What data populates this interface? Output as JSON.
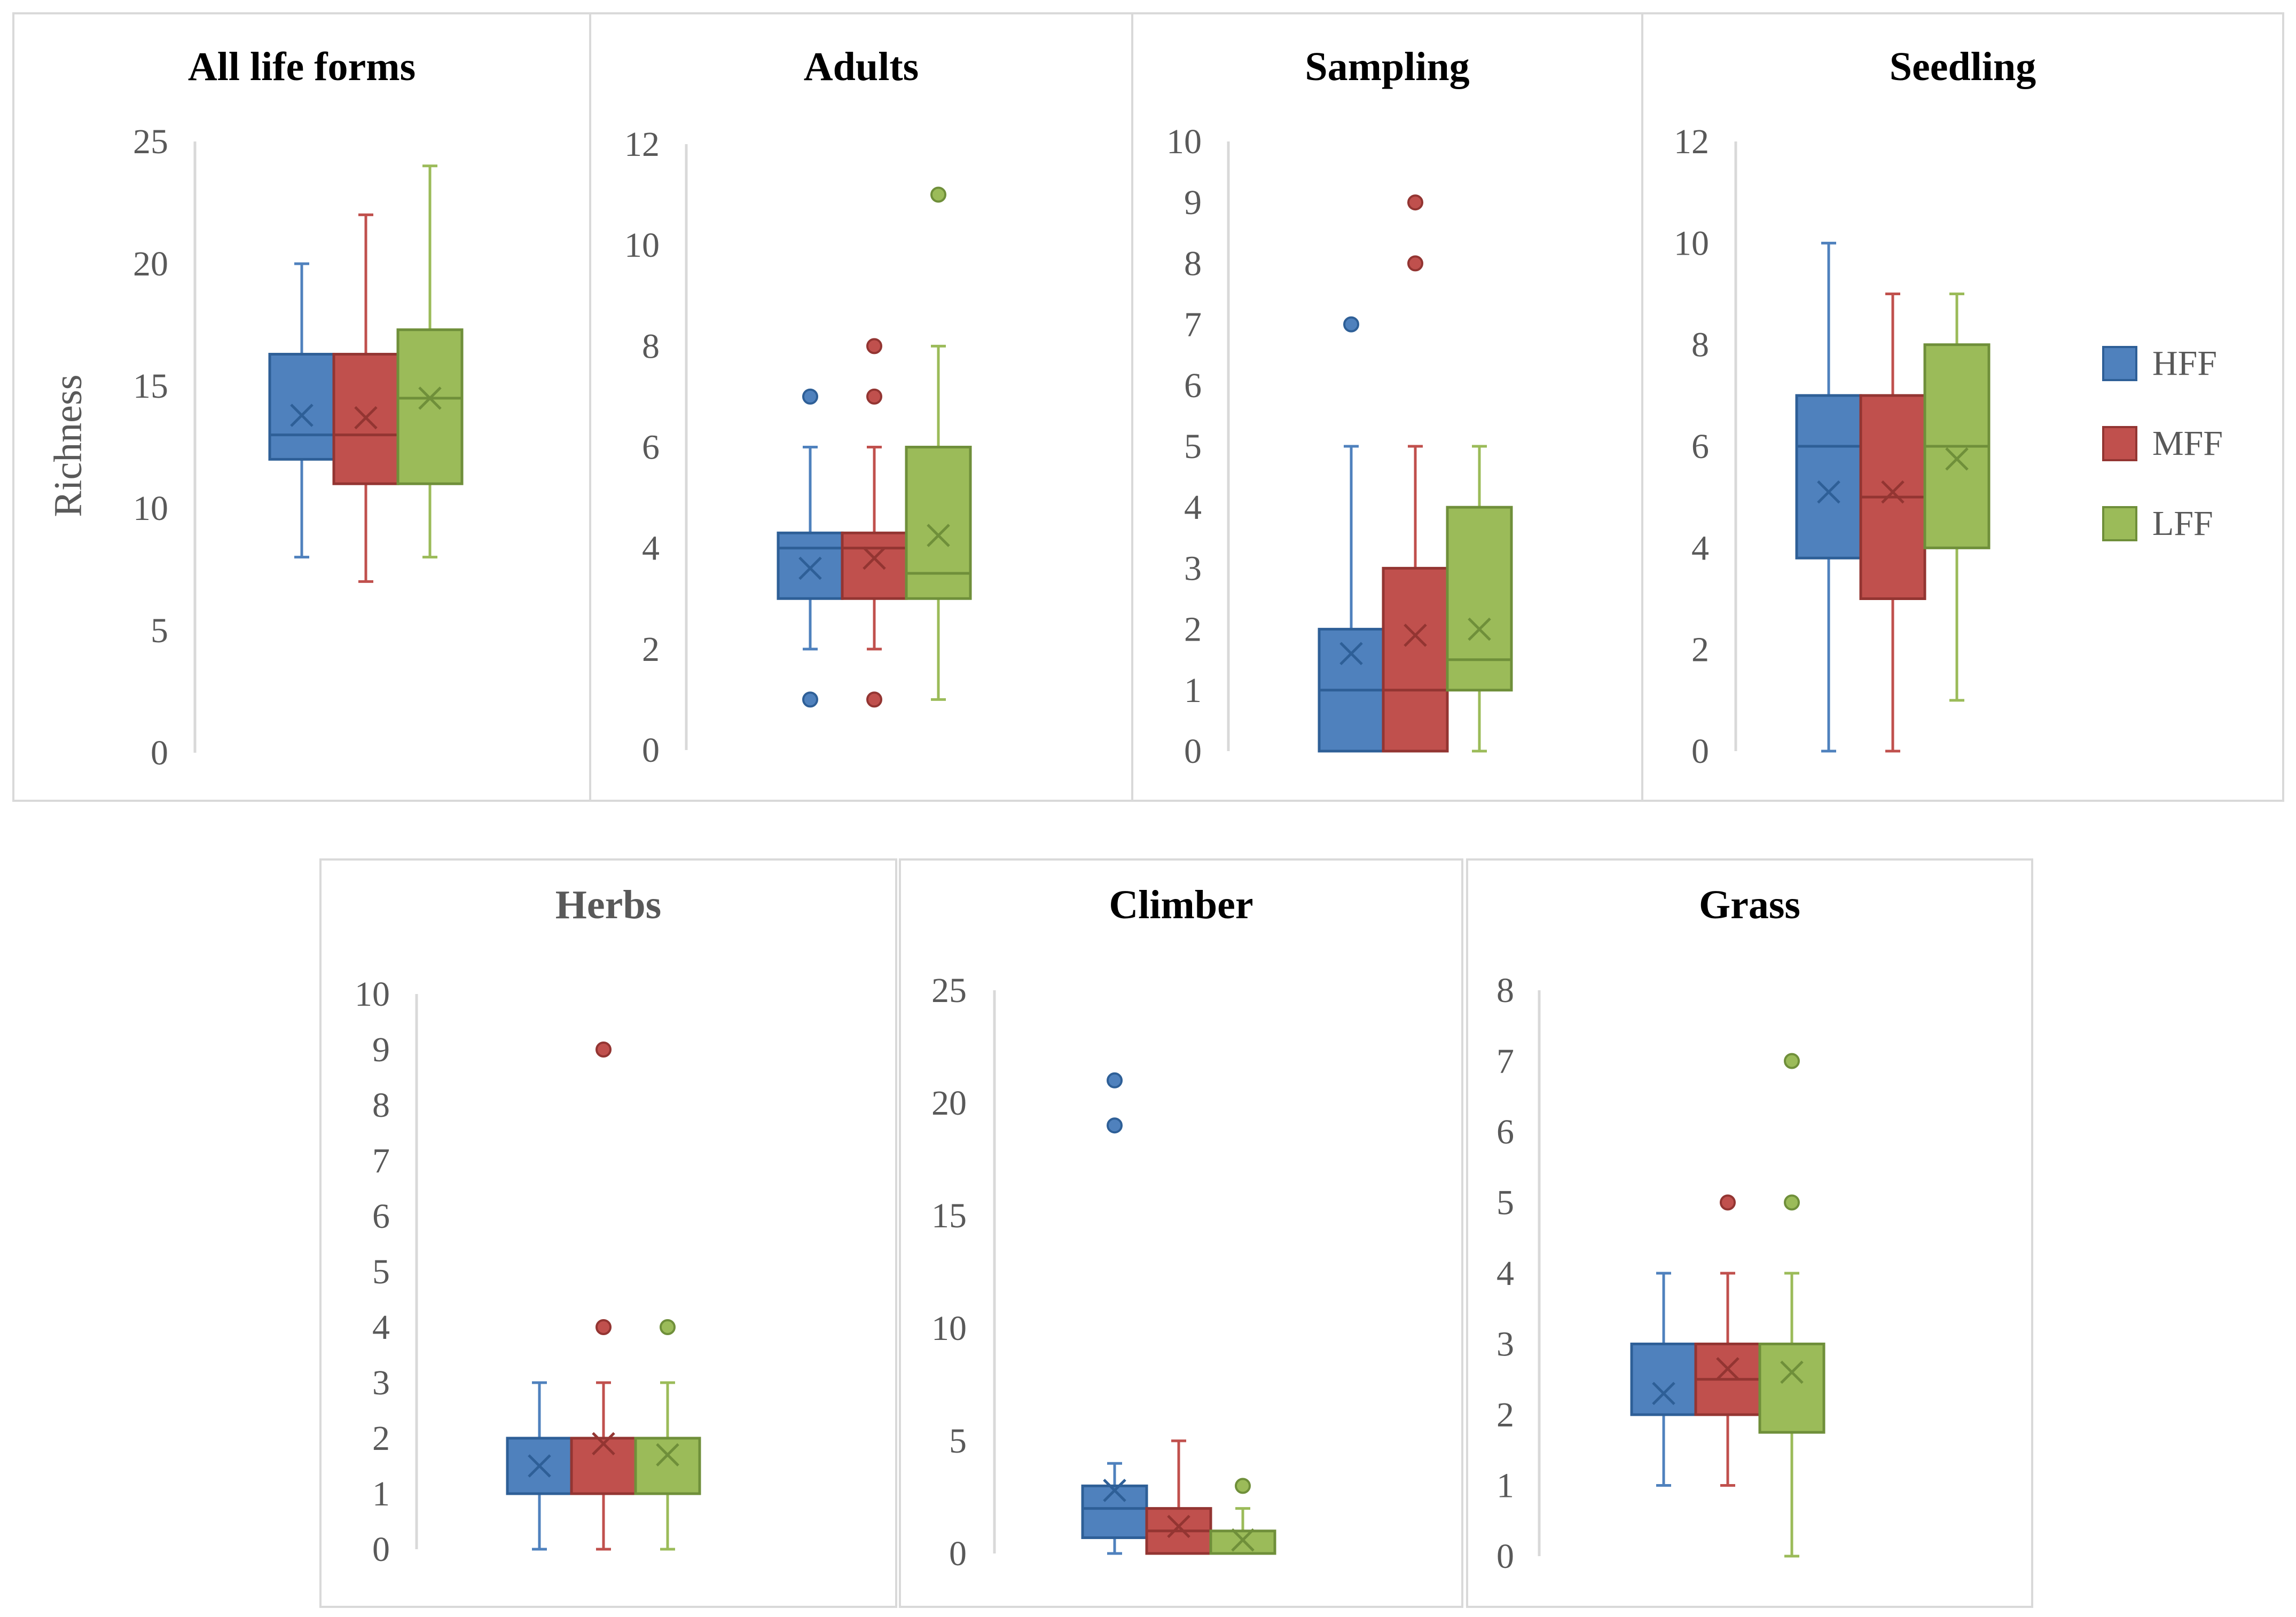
{
  "colors": {
    "HFF": {
      "fill": "#4f81bd",
      "stroke": "#2e5f97"
    },
    "MFF": {
      "fill": "#c0504d",
      "stroke": "#933532"
    },
    "LFF": {
      "fill": "#9bbb59",
      "stroke": "#6f8f3a"
    },
    "axis": "#d9d9d9",
    "tick_text": "#595959",
    "panel_border": "#d9d9d9"
  },
  "y_axis_label": "Richness",
  "legend": [
    "HFF",
    "MFF",
    "LFF"
  ],
  "chart_data": [
    {
      "type": "boxplot",
      "title": "All life forms",
      "title_color": "#000000",
      "ylabel": "Richness",
      "ylim": [
        0,
        25
      ],
      "yticks": [
        0,
        5,
        10,
        15,
        20,
        25
      ],
      "series": [
        {
          "name": "HFF",
          "min": 8,
          "q1": 12,
          "median": 13,
          "q3": 16.3,
          "max": 20,
          "mean": 13.8,
          "outliers": []
        },
        {
          "name": "MFF",
          "min": 7,
          "q1": 11,
          "median": 13,
          "q3": 16.3,
          "max": 22,
          "mean": 13.7,
          "outliers": []
        },
        {
          "name": "LFF",
          "min": 8,
          "q1": 11,
          "median": 14.5,
          "q3": 17.3,
          "max": 24,
          "mean": 14.5,
          "outliers": []
        }
      ]
    },
    {
      "type": "boxplot",
      "title": "Adults",
      "title_color": "#000000",
      "ylim": [
        0,
        12
      ],
      "yticks": [
        0,
        2,
        4,
        6,
        8,
        10,
        12
      ],
      "series": [
        {
          "name": "HFF",
          "min": 2,
          "q1": 3,
          "median": 4,
          "q3": 4.3,
          "max": 6,
          "mean": 3.6,
          "outliers": [
            7,
            1
          ]
        },
        {
          "name": "MFF",
          "min": 2,
          "q1": 3,
          "median": 4,
          "q3": 4.3,
          "max": 6,
          "mean": 3.8,
          "outliers": [
            8,
            7,
            1
          ]
        },
        {
          "name": "LFF",
          "min": 1,
          "q1": 3,
          "median": 3.5,
          "q3": 6,
          "max": 8,
          "mean": 4.25,
          "outliers": [
            11
          ]
        }
      ]
    },
    {
      "type": "boxplot",
      "title": "Sampling",
      "title_color": "#000000",
      "ylim": [
        0,
        10
      ],
      "yticks": [
        0,
        1,
        2,
        3,
        4,
        5,
        6,
        7,
        8,
        9,
        10
      ],
      "series": [
        {
          "name": "HFF",
          "min": 0,
          "q1": 0,
          "median": 1,
          "q3": 2,
          "max": 5,
          "mean": 1.6,
          "outliers": [
            7
          ]
        },
        {
          "name": "MFF",
          "min": 0,
          "q1": 0,
          "median": 1,
          "q3": 3,
          "max": 5,
          "mean": 1.9,
          "outliers": [
            9,
            8
          ]
        },
        {
          "name": "LFF",
          "min": 0,
          "q1": 1,
          "median": 1.5,
          "q3": 4,
          "max": 5,
          "mean": 2.0,
          "outliers": []
        }
      ]
    },
    {
      "type": "boxplot",
      "title": "Seedling",
      "title_color": "#000000",
      "ylim": [
        0,
        12
      ],
      "yticks": [
        0,
        2,
        4,
        6,
        8,
        10,
        12
      ],
      "series": [
        {
          "name": "HFF",
          "min": 0,
          "q1": 3.8,
          "median": 6,
          "q3": 7,
          "max": 10,
          "mean": 5.1,
          "outliers": []
        },
        {
          "name": "MFF",
          "min": 0,
          "q1": 3,
          "median": 5,
          "q3": 7,
          "max": 9,
          "mean": 5.1,
          "outliers": []
        },
        {
          "name": "LFF",
          "min": 1,
          "q1": 4,
          "median": 6,
          "q3": 8,
          "max": 9,
          "mean": 5.75,
          "outliers": []
        }
      ]
    },
    {
      "type": "boxplot",
      "title": "Herbs",
      "title_color": "#595959",
      "ylim": [
        0,
        10
      ],
      "yticks": [
        0,
        1,
        2,
        3,
        4,
        5,
        6,
        7,
        8,
        9,
        10
      ],
      "series": [
        {
          "name": "HFF",
          "min": 0,
          "q1": 1,
          "median": 1,
          "q3": 2,
          "max": 3,
          "mean": 1.5,
          "outliers": []
        },
        {
          "name": "MFF",
          "min": 0,
          "q1": 1,
          "median": 1,
          "q3": 2,
          "max": 3,
          "mean": 1.9,
          "outliers": [
            9,
            4
          ]
        },
        {
          "name": "LFF",
          "min": 0,
          "q1": 1,
          "median": 1,
          "q3": 2,
          "max": 3,
          "mean": 1.7,
          "outliers": [
            4
          ]
        }
      ]
    },
    {
      "type": "boxplot",
      "title": "Climber",
      "title_color": "#000000",
      "ylim": [
        0,
        25
      ],
      "yticks": [
        0,
        5,
        10,
        15,
        20,
        25
      ],
      "series": [
        {
          "name": "HFF",
          "min": 0,
          "q1": 0.7,
          "median": 2,
          "q3": 3,
          "max": 4,
          "mean": 2.8,
          "outliers": [
            21,
            19
          ]
        },
        {
          "name": "MFF",
          "min": 0,
          "q1": 0,
          "median": 1,
          "q3": 2,
          "max": 5,
          "mean": 1.2,
          "outliers": []
        },
        {
          "name": "LFF",
          "min": 0,
          "q1": 0,
          "median": 0,
          "q3": 1,
          "max": 2,
          "mean": 0.6,
          "outliers": [
            3
          ]
        }
      ]
    },
    {
      "type": "boxplot",
      "title": "Grass",
      "title_color": "#000000",
      "ylim": [
        0,
        8
      ],
      "yticks": [
        0,
        1,
        2,
        3,
        4,
        5,
        6,
        7,
        8
      ],
      "series": [
        {
          "name": "HFF",
          "min": 1,
          "q1": 2,
          "median": 3,
          "q3": 3,
          "max": 4,
          "mean": 2.3,
          "outliers": []
        },
        {
          "name": "MFF",
          "min": 1,
          "q1": 2,
          "median": 2.5,
          "q3": 3,
          "max": 4,
          "mean": 2.65,
          "outliers": [
            5
          ]
        },
        {
          "name": "LFF",
          "min": 0,
          "q1": 1.75,
          "median": 3,
          "q3": 3,
          "max": 4,
          "mean": 2.6,
          "outliers": [
            7,
            5
          ]
        }
      ]
    }
  ]
}
